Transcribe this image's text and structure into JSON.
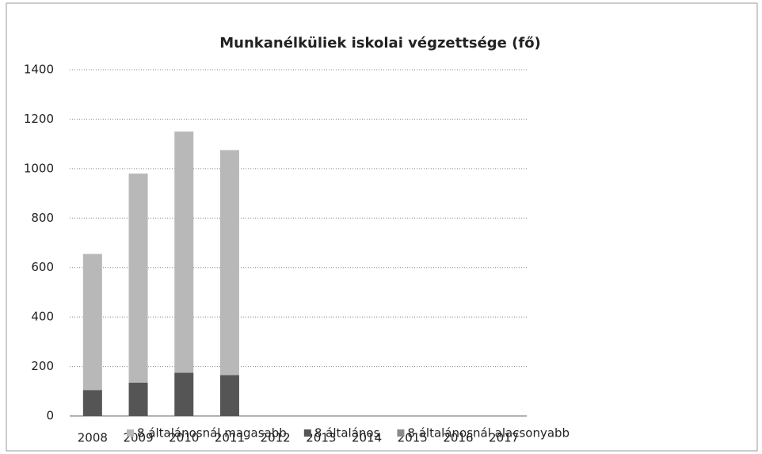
{
  "chart_data": {
    "type": "bar",
    "stacked": true,
    "title": "Munkanélküliek iskolai végzettsége (fő)",
    "categories": [
      "2008",
      "2009",
      "2010",
      "2011",
      "2012",
      "2013",
      "2014",
      "2015",
      "2016",
      "2017"
    ],
    "series": [
      {
        "name": "8 általánosnál magasabb",
        "color": "#b8b8b8",
        "values": [
          550,
          845,
          975,
          910,
          null,
          null,
          null,
          null,
          null,
          null
        ]
      },
      {
        "name": "8 általános",
        "color": "#555555",
        "values": [
          105,
          135,
          175,
          165,
          null,
          null,
          null,
          null,
          null,
          null
        ]
      },
      {
        "name": "8 általánosnál alacsonyabb",
        "color": "#8a8a8a",
        "values": [
          0,
          0,
          0,
          0,
          null,
          null,
          null,
          null,
          null,
          null
        ]
      }
    ],
    "ylim": [
      0,
      1400
    ],
    "yticks": [
      0,
      200,
      400,
      600,
      800,
      1000,
      1200,
      1400
    ],
    "grid": true
  }
}
